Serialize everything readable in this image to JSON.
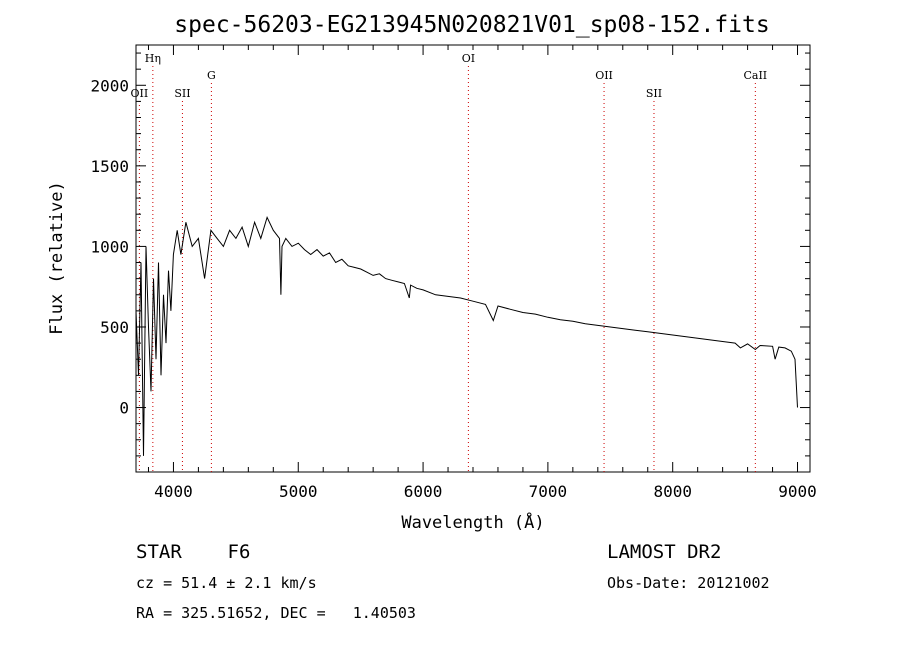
{
  "chart_data": {
    "type": "line",
    "title": "spec-56203-EG213945N020821V01_sp08-152.fits",
    "xlabel": "Wavelength (Å)",
    "ylabel": "Flux (relative)",
    "xlim": [
      3700,
      9100
    ],
    "ylim": [
      -400,
      2250
    ],
    "xticks": [
      4000,
      5000,
      6000,
      7000,
      8000,
      9000
    ],
    "yticks": [
      0,
      500,
      1000,
      1500,
      2000
    ],
    "line_color": "#000000",
    "marker_color": "#cc0000",
    "grid": false,
    "series": [
      {
        "x": [
          3700,
          3720,
          3740,
          3760,
          3780,
          3800,
          3820,
          3840,
          3860,
          3880,
          3900,
          3920,
          3940,
          3960,
          3980,
          4000,
          4030,
          4060,
          4100,
          4150,
          4200,
          4250,
          4300,
          4350,
          4400,
          4450,
          4500,
          4550,
          4600,
          4650,
          4700,
          4750,
          4800,
          4850,
          4861,
          4870,
          4900,
          4950,
          5000,
          5050,
          5100,
          5150,
          5200,
          5250,
          5300,
          5350,
          5400,
          5450,
          5500,
          5550,
          5600,
          5650,
          5700,
          5750,
          5800,
          5850,
          5890,
          5900,
          5950,
          6000,
          6100,
          6200,
          6300,
          6400,
          6500,
          6563,
          6600,
          6700,
          6800,
          6900,
          7000,
          7100,
          7200,
          7300,
          7400,
          7500,
          7600,
          7700,
          7800,
          7900,
          8000,
          8100,
          8200,
          8300,
          8400,
          8500,
          8542,
          8600,
          8662,
          8700,
          8800,
          8820,
          8850,
          8900,
          8950,
          8980,
          9000
        ],
        "values": [
          600,
          200,
          900,
          -300,
          1000,
          500,
          100,
          800,
          300,
          900,
          200,
          700,
          400,
          850,
          600,
          950,
          1100,
          950,
          1150,
          1000,
          1050,
          800,
          1100,
          1050,
          1000,
          1100,
          1050,
          1120,
          1000,
          1150,
          1050,
          1180,
          1100,
          1050,
          700,
          1000,
          1050,
          1000,
          1020,
          980,
          950,
          980,
          940,
          960,
          900,
          920,
          880,
          870,
          860,
          840,
          820,
          830,
          800,
          790,
          780,
          770,
          680,
          760,
          740,
          730,
          700,
          690,
          680,
          660,
          640,
          540,
          630,
          610,
          590,
          580,
          560,
          545,
          535,
          520,
          510,
          500,
          490,
          480,
          470,
          460,
          450,
          440,
          430,
          420,
          410,
          400,
          370,
          395,
          360,
          385,
          380,
          300,
          375,
          370,
          350,
          300,
          0
        ]
      }
    ],
    "line_markers": [
      {
        "label": "Hη",
        "wavelength": 3835,
        "row": 0
      },
      {
        "label": "OII",
        "wavelength": 3727,
        "row": 2
      },
      {
        "label": "SII",
        "wavelength": 4072,
        "row": 2
      },
      {
        "label": "G",
        "wavelength": 4304,
        "row": 1
      },
      {
        "label": "OI",
        "wavelength": 6363,
        "row": 0
      },
      {
        "label": "OII",
        "wavelength": 7450,
        "row": 1
      },
      {
        "label": "SII",
        "wavelength": 7850,
        "row": 2
      },
      {
        "label": "CaII",
        "wavelength": 8662,
        "row": 1
      }
    ]
  },
  "info": {
    "object": "STAR    F6",
    "survey": "LAMOST DR2",
    "cz": "cz = 51.4 ± 2.1 km/s",
    "obs_date": "Obs-Date: 20121002",
    "radec": "RA = 325.51652, DEC =   1.40503"
  }
}
